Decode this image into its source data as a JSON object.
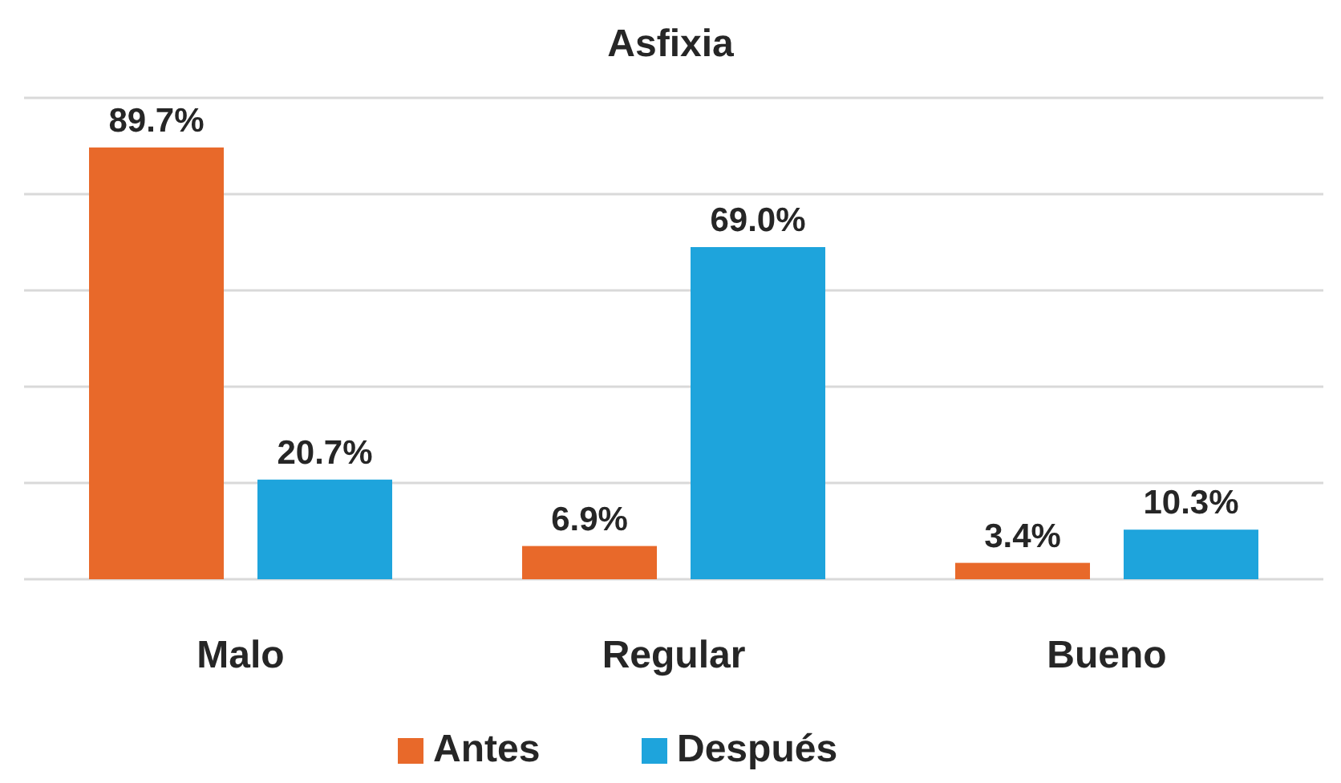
{
  "chart_data": {
    "type": "bar",
    "title": "Asfixia",
    "categories": [
      "Malo",
      "Regular",
      "Bueno"
    ],
    "series": [
      {
        "name": "Antes",
        "color": "#e8692a",
        "values": [
          89.7,
          6.9,
          3.4
        ],
        "value_labels": [
          "89.7%",
          "6.9%",
          "3.4%"
        ]
      },
      {
        "name": "Después",
        "color": "#1ea4dc",
        "values": [
          20.7,
          69.0,
          10.3
        ],
        "value_labels": [
          "20.7%",
          "69.0%",
          "10.3%"
        ]
      }
    ],
    "grid": "y",
    "tick_labels": "x",
    "legend": "bottom"
  }
}
